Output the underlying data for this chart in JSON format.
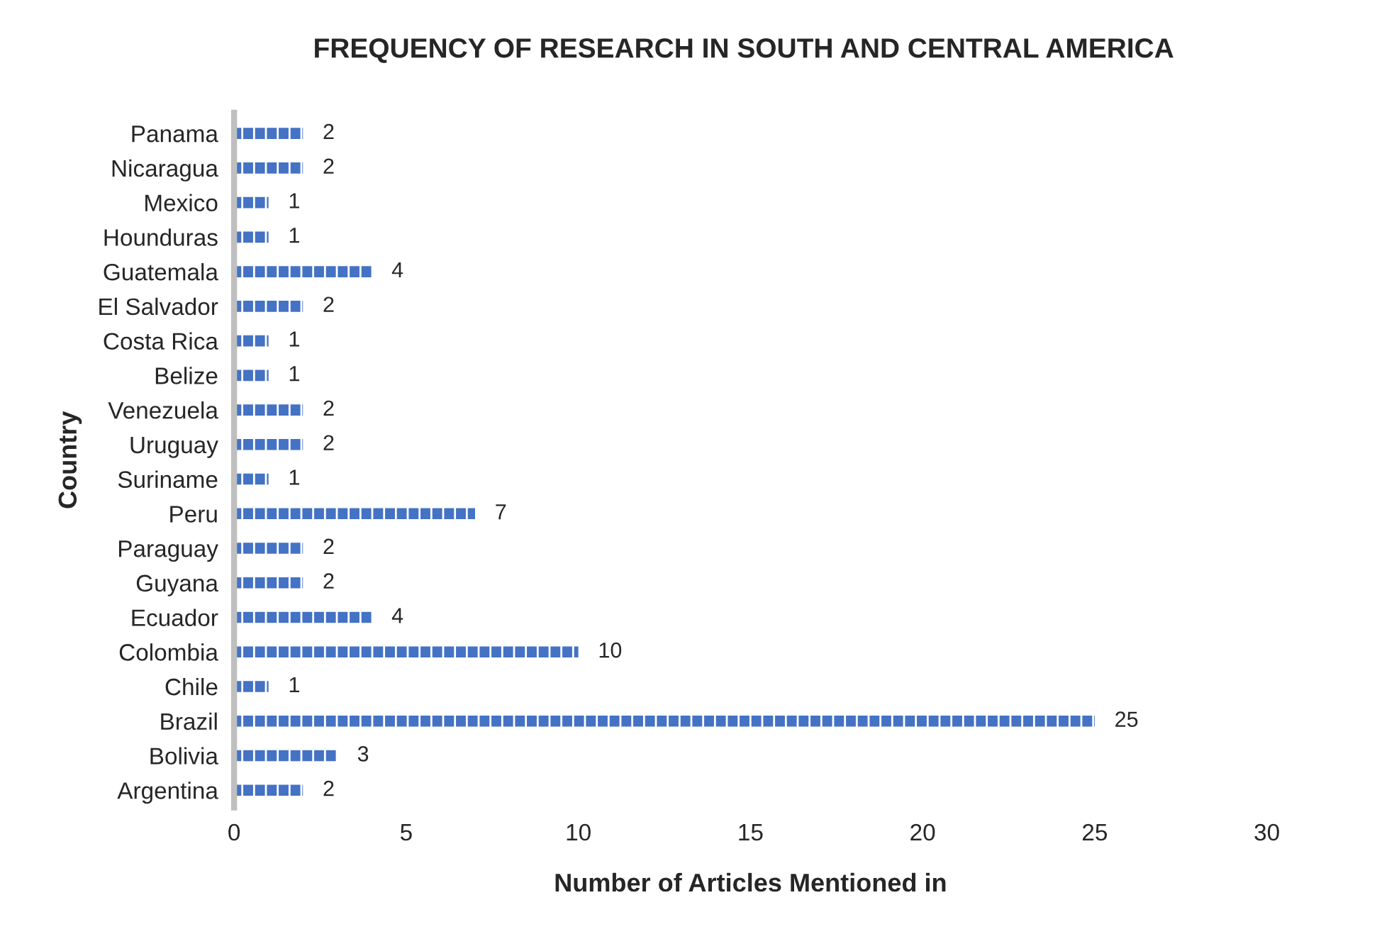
{
  "chart_data": {
    "type": "bar",
    "orientation": "horizontal",
    "title": "FREQUENCY OF RESEARCH IN SOUTH AND CENTRAL AMERICA",
    "xlabel": "Number of Articles Mentioned in",
    "ylabel": "Country",
    "categories": [
      "Panama",
      "Nicaragua",
      "Mexico",
      "Hounduras",
      "Guatemala",
      "El Salvador",
      "Costa Rica",
      "Belize",
      "Venezuela",
      "Uruguay",
      "Suriname",
      "Peru",
      "Paraguay",
      "Guyana",
      "Ecuador",
      "Colombia",
      "Chile",
      "Brazil",
      "Bolivia",
      "Argentina"
    ],
    "values": [
      2,
      2,
      1,
      1,
      4,
      2,
      1,
      1,
      2,
      2,
      1,
      7,
      2,
      2,
      4,
      10,
      1,
      25,
      3,
      2
    ],
    "color": "#4472c4",
    "xlim": [
      0,
      30
    ],
    "xticks": [
      0,
      5,
      10,
      15,
      20,
      25,
      30
    ],
    "data_labels": true,
    "grid": false,
    "legend": false
  }
}
